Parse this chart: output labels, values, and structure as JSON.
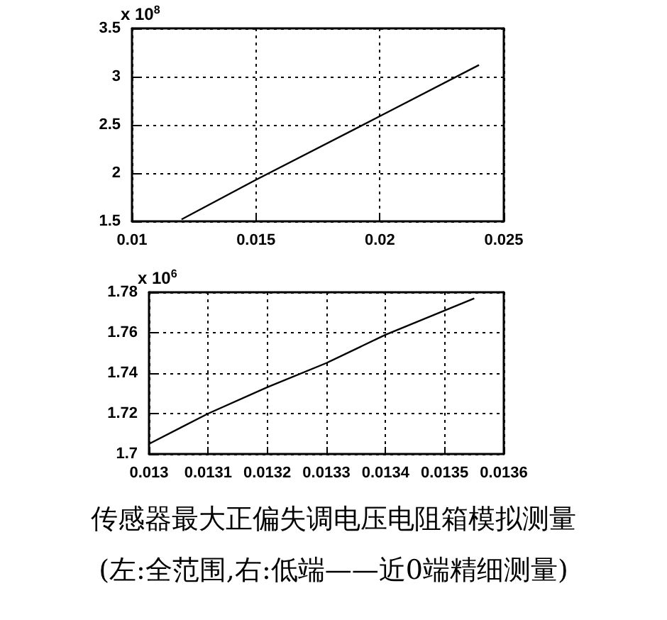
{
  "chart_data": [
    {
      "type": "line",
      "x": [
        0.012,
        0.015,
        0.02,
        0.024
      ],
      "values": [
        1.52,
        1.93,
        2.59,
        3.12
      ],
      "color": "#000000",
      "xlim": [
        0.01,
        0.025
      ],
      "xticks": [
        0.01,
        0.015,
        0.02,
        0.025
      ],
      "ylim": [
        1.5,
        3.5
      ],
      "yticks": [
        1.5,
        2,
        2.5,
        3,
        3.5
      ],
      "grid": true,
      "annotations": [
        "x 10$^{8}$"
      ]
    },
    {
      "type": "line",
      "x": [
        0.013,
        0.0131,
        0.0132,
        0.0133,
        0.0134,
        0.01355
      ],
      "values": [
        1.705,
        1.72,
        1.733,
        1.745,
        1.759,
        1.777
      ],
      "color": "#000000",
      "xlim": [
        0.013,
        0.0136
      ],
      "xticks": [
        0.013,
        0.0131,
        0.0132,
        0.0133,
        0.0134,
        0.0135,
        0.0136
      ],
      "ylim": [
        1.7,
        1.78
      ],
      "yticks": [
        1.7,
        1.72,
        1.74,
        1.76,
        1.78
      ],
      "grid": true,
      "annotations": [
        "x 10$^{6}$",
        "传感器最大正偏失调电压电阻箱模拟测量",
        "(左:全范围,右:低端——近0端精细测量)"
      ]
    }
  ]
}
